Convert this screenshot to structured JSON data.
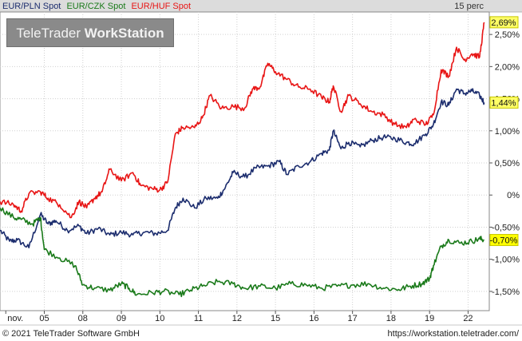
{
  "watermark": {
    "brand": "TeleTrader",
    "product": "WorkStation"
  },
  "footer": {
    "copyright": "© 2021 TeleTrader Software GmbH",
    "url": "https://workstation.teletrader.com/"
  },
  "chart_data": {
    "type": "line",
    "title": "",
    "units_label": "15 perc",
    "x_labels": [
      {
        "label": "nov.",
        "pos": 0
      },
      {
        "label": "05",
        "pos": 1
      },
      {
        "label": "08",
        "pos": 2
      },
      {
        "label": "09",
        "pos": 3
      },
      {
        "label": "10",
        "pos": 4
      },
      {
        "label": "11",
        "pos": 5
      },
      {
        "label": "12",
        "pos": 6
      },
      {
        "label": "15",
        "pos": 7
      },
      {
        "label": "16",
        "pos": 8
      },
      {
        "label": "17",
        "pos": 9
      },
      {
        "label": "18",
        "pos": 10
      },
      {
        "label": "19",
        "pos": 11
      },
      {
        "label": "22",
        "pos": 12
      }
    ],
    "xlim": [
      -0.15,
      12.55
    ],
    "ylim": [
      -1.8,
      2.85
    ],
    "y_ticks": [
      -1.5,
      -1.0,
      -0.5,
      0,
      0.5,
      1.0,
      1.5,
      2.0,
      2.5
    ],
    "y_tick_labels": [
      "-1,50%",
      "-1,00%",
      "-0,50%",
      "0%",
      "0,50%",
      "1,00%",
      "1,50%",
      "2,00%",
      "2,50%"
    ],
    "grid": true,
    "legend_position": "top-left",
    "series": [
      {
        "name": "EUR/PLN Spot",
        "color": "#1c2d6e",
        "last_label": "1,44%",
        "points": [
          [
            -0.15,
            -0.55
          ],
          [
            0.1,
            -0.72
          ],
          [
            0.3,
            -0.7
          ],
          [
            0.6,
            -0.82
          ],
          [
            0.9,
            -0.3
          ],
          [
            1.1,
            -0.45
          ],
          [
            1.3,
            -0.4
          ],
          [
            1.6,
            -0.55
          ],
          [
            1.9,
            -0.48
          ],
          [
            2.1,
            -0.6
          ],
          [
            2.4,
            -0.52
          ],
          [
            2.7,
            -0.62
          ],
          [
            3.0,
            -0.58
          ],
          [
            3.3,
            -0.62
          ],
          [
            3.6,
            -0.58
          ],
          [
            3.9,
            -0.6
          ],
          [
            4.2,
            -0.55
          ],
          [
            4.4,
            -0.2
          ],
          [
            4.6,
            -0.05
          ],
          [
            4.9,
            -0.2
          ],
          [
            5.2,
            -0.05
          ],
          [
            5.5,
            -0.05
          ],
          [
            5.7,
            0.12
          ],
          [
            5.9,
            0.35
          ],
          [
            6.2,
            0.28
          ],
          [
            6.5,
            0.42
          ],
          [
            6.8,
            0.45
          ],
          [
            7.1,
            0.52
          ],
          [
            7.3,
            0.32
          ],
          [
            7.6,
            0.45
          ],
          [
            7.9,
            0.52
          ],
          [
            8.2,
            0.65
          ],
          [
            8.4,
            0.7
          ],
          [
            8.5,
            1.0
          ],
          [
            8.7,
            0.72
          ],
          [
            8.9,
            0.82
          ],
          [
            9.2,
            0.75
          ],
          [
            9.5,
            0.85
          ],
          [
            9.8,
            0.9
          ],
          [
            10.1,
            0.88
          ],
          [
            10.4,
            0.82
          ],
          [
            10.6,
            0.8
          ],
          [
            10.9,
            0.95
          ],
          [
            11.1,
            1.1
          ],
          [
            11.3,
            1.45
          ],
          [
            11.5,
            1.4
          ],
          [
            11.7,
            1.65
          ],
          [
            11.9,
            1.58
          ],
          [
            12.1,
            1.62
          ],
          [
            12.3,
            1.55
          ],
          [
            12.42,
            1.44
          ]
        ]
      },
      {
        "name": "EUR/CZK Spot",
        "color": "#1a7a1a",
        "last_label": "-0,70%",
        "points": [
          [
            -0.15,
            -0.2
          ],
          [
            0.2,
            -0.35
          ],
          [
            0.4,
            -0.38
          ],
          [
            0.7,
            -0.45
          ],
          [
            0.9,
            -0.35
          ],
          [
            1.0,
            -0.85
          ],
          [
            1.4,
            -0.98
          ],
          [
            1.8,
            -1.1
          ],
          [
            2.0,
            -1.4
          ],
          [
            2.3,
            -1.45
          ],
          [
            2.7,
            -1.48
          ],
          [
            3.0,
            -1.38
          ],
          [
            3.2,
            -1.45
          ],
          [
            3.4,
            -1.55
          ],
          [
            3.8,
            -1.52
          ],
          [
            4.1,
            -1.5
          ],
          [
            4.5,
            -1.55
          ],
          [
            4.8,
            -1.48
          ],
          [
            5.1,
            -1.42
          ],
          [
            5.5,
            -1.35
          ],
          [
            5.9,
            -1.38
          ],
          [
            6.2,
            -1.45
          ],
          [
            6.6,
            -1.42
          ],
          [
            7.0,
            -1.45
          ],
          [
            7.4,
            -1.38
          ],
          [
            7.8,
            -1.4
          ],
          [
            8.2,
            -1.45
          ],
          [
            8.6,
            -1.42
          ],
          [
            9.0,
            -1.4
          ],
          [
            9.4,
            -1.38
          ],
          [
            9.8,
            -1.45
          ],
          [
            10.2,
            -1.47
          ],
          [
            10.5,
            -1.42
          ],
          [
            10.8,
            -1.38
          ],
          [
            11.0,
            -1.3
          ],
          [
            11.1,
            -1.1
          ],
          [
            11.3,
            -0.8
          ],
          [
            11.5,
            -0.7
          ],
          [
            11.8,
            -0.75
          ],
          [
            12.1,
            -0.72
          ],
          [
            12.3,
            -0.68
          ],
          [
            12.42,
            -0.7
          ]
        ]
      },
      {
        "name": "EUR/HUF Spot",
        "color": "#e81515",
        "last_label": "2,69%",
        "points": [
          [
            -0.15,
            -0.1
          ],
          [
            0.2,
            -0.15
          ],
          [
            0.4,
            -0.25
          ],
          [
            0.6,
            0.02
          ],
          [
            0.9,
            0.05
          ],
          [
            1.1,
            -0.05
          ],
          [
            1.4,
            -0.15
          ],
          [
            1.7,
            -0.35
          ],
          [
            1.9,
            -0.1
          ],
          [
            2.1,
            -0.2
          ],
          [
            2.3,
            -0.05
          ],
          [
            2.5,
            0.05
          ],
          [
            2.7,
            0.4
          ],
          [
            3.0,
            0.22
          ],
          [
            3.3,
            0.35
          ],
          [
            3.5,
            0.15
          ],
          [
            3.8,
            0.1
          ],
          [
            4.0,
            0.08
          ],
          [
            4.2,
            0.2
          ],
          [
            4.4,
            0.95
          ],
          [
            4.6,
            1.05
          ],
          [
            4.9,
            1.05
          ],
          [
            5.1,
            1.2
          ],
          [
            5.3,
            1.55
          ],
          [
            5.6,
            1.35
          ],
          [
            5.9,
            1.38
          ],
          [
            6.2,
            1.35
          ],
          [
            6.4,
            1.65
          ],
          [
            6.6,
            1.68
          ],
          [
            6.8,
            2.05
          ],
          [
            7.0,
            1.92
          ],
          [
            7.3,
            1.8
          ],
          [
            7.6,
            1.68
          ],
          [
            7.9,
            1.65
          ],
          [
            8.2,
            1.52
          ],
          [
            8.4,
            1.45
          ],
          [
            8.5,
            1.7
          ],
          [
            8.7,
            1.3
          ],
          [
            8.9,
            1.55
          ],
          [
            9.2,
            1.42
          ],
          [
            9.5,
            1.3
          ],
          [
            9.8,
            1.25
          ],
          [
            10.1,
            1.1
          ],
          [
            10.4,
            1.05
          ],
          [
            10.6,
            1.18
          ],
          [
            10.9,
            1.1
          ],
          [
            11.1,
            1.25
          ],
          [
            11.3,
            1.95
          ],
          [
            11.5,
            1.85
          ],
          [
            11.7,
            2.3
          ],
          [
            11.9,
            2.1
          ],
          [
            12.1,
            2.2
          ],
          [
            12.3,
            2.15
          ],
          [
            12.42,
            2.69
          ]
        ]
      }
    ]
  }
}
